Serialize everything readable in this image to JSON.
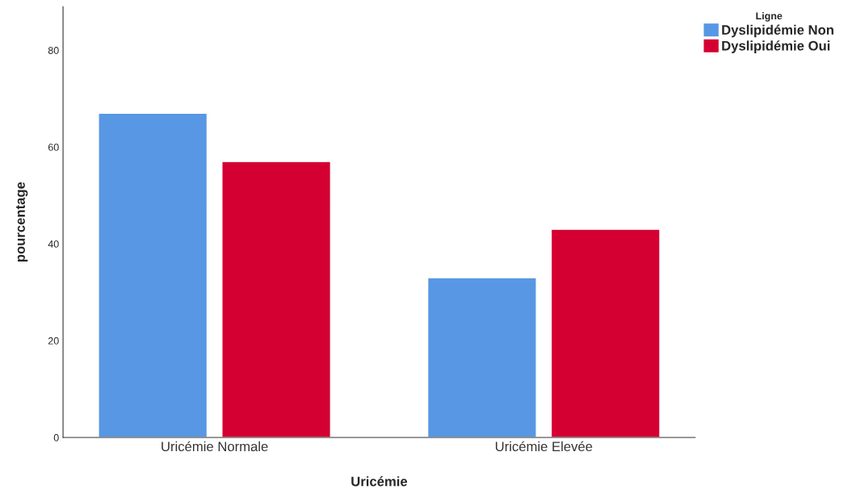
{
  "chart_data": {
    "type": "bar",
    "xlabel": "Uricémie",
    "ylabel": "pourcentage",
    "legend_title": "Ligne",
    "categories": [
      "Uricémie Normale",
      "Uricémie Elevée"
    ],
    "series": [
      {
        "name": "Dyslipidémie Non",
        "color": "#5797e3",
        "values": [
          67,
          33
        ]
      },
      {
        "name": "Dyslipidémie Oui",
        "color": "#d50032",
        "values": [
          57,
          43
        ]
      }
    ],
    "ylim": [
      0,
      89
    ],
    "yticks": [
      0,
      20,
      40,
      60,
      80
    ],
    "grid": false,
    "legend": "top right"
  }
}
